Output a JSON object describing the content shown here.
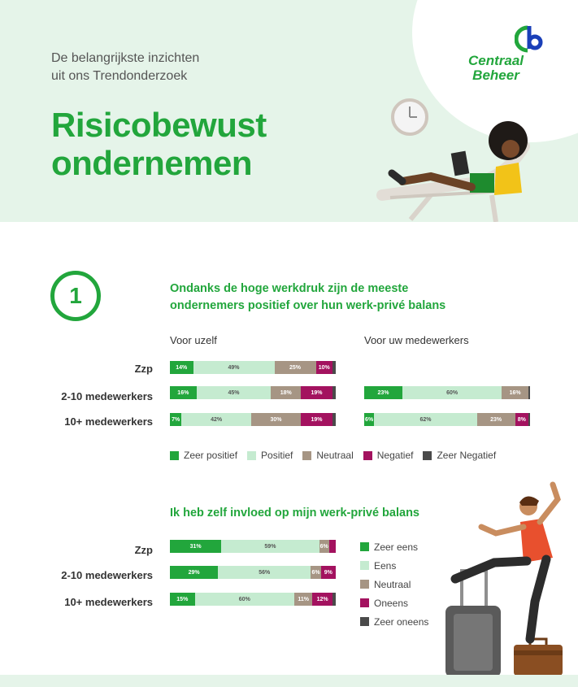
{
  "header": {
    "kicker_line1": "De belangrijkste inzichten",
    "kicker_line2": "uit ons Trendonderzoek",
    "title_line1": "Risicobewust",
    "title_line2": "ondernemen",
    "logo_line1": "Centraal",
    "logo_line2": "Beheer"
  },
  "section": {
    "number": "1",
    "heading_line1": "Ondanks de hoge werkdruk zijn de meeste",
    "heading_line2": "ondernemers positief over hun werk-privé balans",
    "sub_left": "Voor uzelf",
    "sub_right": "Voor uw medewerkers"
  },
  "colors": {
    "brand_green": "#22a63c",
    "light_green": "#c5ebd0",
    "neutral": "#a69584",
    "negative": "#a3125f",
    "very_negative": "#4a4a4a"
  },
  "chart_data": [
    {
      "type": "bar",
      "stacked": true,
      "orientation": "horizontal",
      "subtitle": "Voor uzelf",
      "categories": [
        "Zzp",
        "2-10 medewerkers",
        "10+ medewerkers"
      ],
      "series": [
        {
          "name": "Zeer positief",
          "values": [
            14,
            16,
            7
          ],
          "labels": [
            "14%",
            "16%",
            "7%"
          ]
        },
        {
          "name": "Positief",
          "values": [
            49,
            45,
            42
          ],
          "labels": [
            "49%",
            "45%",
            "42%"
          ]
        },
        {
          "name": "Neutraal",
          "values": [
            25,
            18,
            30
          ],
          "labels": [
            "25%",
            "18%",
            "30%"
          ]
        },
        {
          "name": "Negatief",
          "values": [
            10,
            19,
            19
          ],
          "labels": [
            "10%",
            "19%",
            "19%"
          ]
        },
        {
          "name": "Zeer Negatief",
          "values": [
            2,
            2,
            2
          ],
          "labels": [
            "",
            "",
            ""
          ]
        }
      ]
    },
    {
      "type": "bar",
      "stacked": true,
      "orientation": "horizontal",
      "subtitle": "Voor uw medewerkers",
      "categories": [
        "Zzp",
        "2-10 medewerkers",
        "10+ medewerkers"
      ],
      "series": [
        {
          "name": "Zeer positief",
          "values": [
            0,
            23,
            6
          ],
          "labels": [
            "",
            "23%",
            "6%"
          ]
        },
        {
          "name": "Positief",
          "values": [
            0,
            60,
            62
          ],
          "labels": [
            "",
            "60%",
            "62%"
          ]
        },
        {
          "name": "Neutraal",
          "values": [
            0,
            16,
            23
          ],
          "labels": [
            "",
            "16%",
            "23%"
          ]
        },
        {
          "name": "Negatief",
          "values": [
            0,
            0,
            8
          ],
          "labels": [
            "",
            "",
            "8%"
          ]
        },
        {
          "name": "Zeer Negatief",
          "values": [
            0,
            1,
            1
          ],
          "labels": [
            "",
            "",
            ""
          ]
        }
      ]
    },
    {
      "type": "bar",
      "stacked": true,
      "orientation": "horizontal",
      "title": "Ik heb zelf invloed op mijn werk-privé balans",
      "categories": [
        "Zzp",
        "2-10 medewerkers",
        "10+ medewerkers"
      ],
      "series": [
        {
          "name": "Zeer eens",
          "values": [
            31,
            29,
            15
          ],
          "labels": [
            "31%",
            "29%",
            "15%"
          ]
        },
        {
          "name": "Eens",
          "values": [
            59,
            56,
            60
          ],
          "labels": [
            "59%",
            "56%",
            "60%"
          ]
        },
        {
          "name": "Neutraal",
          "values": [
            6,
            6,
            11
          ],
          "labels": [
            "6%",
            "6%",
            "11%"
          ]
        },
        {
          "name": "Oneens",
          "values": [
            4,
            9,
            12
          ],
          "labels": [
            "",
            "9%",
            "12%"
          ]
        },
        {
          "name": "Zeer oneens",
          "values": [
            0,
            0,
            2
          ],
          "labels": [
            "",
            "",
            ""
          ]
        }
      ]
    }
  ],
  "legend1": [
    "Zeer positief",
    "Positief",
    "Neutraal",
    "Negatief",
    "Zeer Negatief"
  ],
  "legend2": [
    "Zeer eens",
    "Eens",
    "Neutraal",
    "Oneens",
    "Zeer oneens"
  ]
}
